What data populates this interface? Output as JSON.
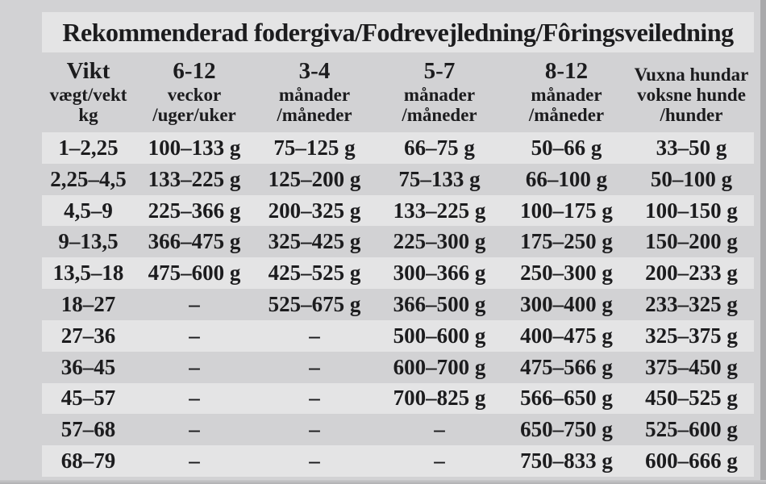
{
  "title": "Rekommenderad fodergiva/Fodrevejledning/Fôringsveiledning",
  "header": {
    "columns": [
      {
        "lines": [
          "Vikt",
          "vægt/vekt",
          "kg"
        ]
      },
      {
        "lines": [
          "6-12",
          "veckor",
          "/uger/uker"
        ]
      },
      {
        "lines": [
          "3-4",
          "månader",
          "/måneder"
        ]
      },
      {
        "lines": [
          "5-7",
          "månader",
          "/måneder"
        ]
      },
      {
        "lines": [
          "8-12",
          "månader",
          "/måneder"
        ]
      },
      {
        "lines": [
          "Vuxna hundar",
          "voksne hunde",
          "/hunder"
        ]
      }
    ]
  },
  "rows": [
    [
      "1–2,25",
      "100–133 g",
      "75–125 g",
      "66–75 g",
      "50–66 g",
      "33–50 g"
    ],
    [
      "2,25–4,5",
      "133–225 g",
      "125–200 g",
      "75–133 g",
      "66–100 g",
      "50–100 g"
    ],
    [
      "4,5–9",
      "225–366 g",
      "200–325 g",
      "133–225 g",
      "100–175 g",
      "100–150 g"
    ],
    [
      "9–13,5",
      "366–475 g",
      "325–425 g",
      "225–300 g",
      "175–250 g",
      "150–200 g"
    ],
    [
      "13,5–18",
      "475–600 g",
      "425–525 g",
      "300–366 g",
      "250–300 g",
      "200–233 g"
    ],
    [
      "18–27",
      "–",
      "525–675 g",
      "366–500 g",
      "300–400 g",
      "233–325 g"
    ],
    [
      "27–36",
      "–",
      "–",
      "500–600 g",
      "400–475 g",
      "325–375 g"
    ],
    [
      "36–45",
      "–",
      "–",
      "600–700 g",
      "475–566 g",
      "375–450 g"
    ],
    [
      "45–57",
      "–",
      "–",
      "700–825 g",
      "566–650 g",
      "450–525 g"
    ],
    [
      "57–68",
      "–",
      "–",
      "–",
      "650–750 g",
      "525–600 g"
    ],
    [
      "68–79",
      "–",
      "–",
      "–",
      "750–833 g",
      "600–666 g"
    ]
  ],
  "colors": {
    "background": "#d2d2d4",
    "stripe_band": "#e4e4e5",
    "title_band": "#e4e4e5",
    "text": "#1c1c1e",
    "right_edge": "#a9a9ab"
  }
}
